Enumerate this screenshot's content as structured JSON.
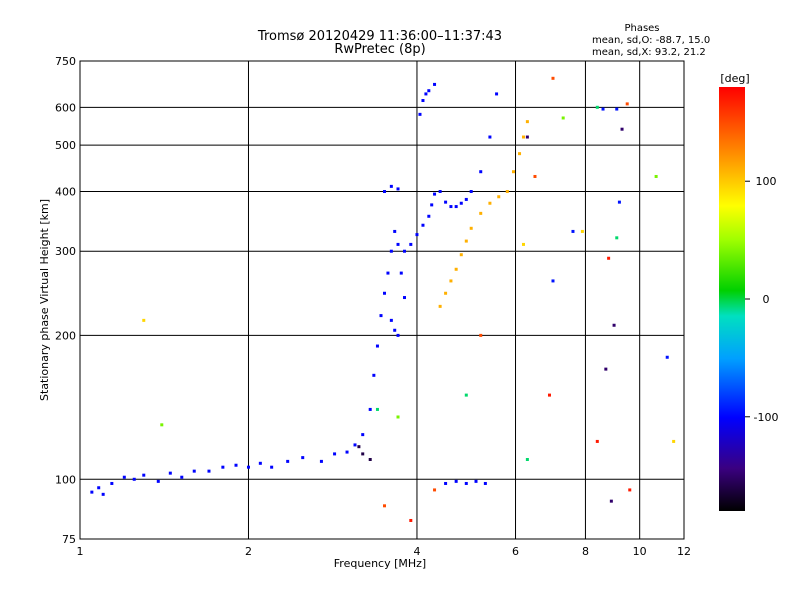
{
  "chart_data": {
    "type": "scatter",
    "title": "Tromsø 20120429 11:36:00–11:37:43",
    "subtitle": "RwPretec (8p)",
    "xlabel": "Frequency [MHz]",
    "ylabel": "Stationary phase Virtual Height [km]",
    "x_scale": "log",
    "y_scale": "log",
    "xlim": [
      1,
      12
    ],
    "ylim": [
      75,
      750
    ],
    "x_ticks": [
      1,
      2,
      4,
      6,
      8,
      10,
      12
    ],
    "y_ticks": [
      75,
      100,
      200,
      300,
      400,
      500,
      600,
      750
    ],
    "grid": true,
    "stats": {
      "header": "Phases",
      "line1": "mean, sd,O: -88.7, 15.0",
      "line2": "mean, sd,X:  93.2, 21.2"
    },
    "colorbar": {
      "label": "[deg]",
      "range": [
        -180,
        180
      ],
      "ticks": [
        100,
        0,
        -100
      ]
    },
    "series": [
      {
        "phase": -100,
        "points": [
          [
            1.05,
            94
          ],
          [
            1.08,
            96
          ],
          [
            1.1,
            93
          ],
          [
            1.14,
            98
          ],
          [
            1.2,
            101
          ],
          [
            1.25,
            100
          ],
          [
            1.3,
            102
          ],
          [
            1.38,
            99
          ],
          [
            1.45,
            103
          ],
          [
            1.52,
            101
          ],
          [
            1.6,
            104
          ],
          [
            1.7,
            104
          ],
          [
            1.8,
            106
          ],
          [
            1.9,
            107
          ],
          [
            2.0,
            106
          ],
          [
            2.1,
            108
          ],
          [
            2.2,
            106
          ],
          [
            2.35,
            109
          ],
          [
            2.5,
            111
          ],
          [
            2.7,
            109
          ],
          [
            2.85,
            113
          ],
          [
            3.0,
            114
          ],
          [
            3.1,
            118
          ],
          [
            3.2,
            124
          ],
          [
            3.3,
            140
          ],
          [
            3.35,
            165
          ],
          [
            3.4,
            190
          ],
          [
            3.45,
            220
          ],
          [
            3.5,
            245
          ],
          [
            3.55,
            270
          ],
          [
            3.6,
            300
          ],
          [
            3.65,
            330
          ],
          [
            3.7,
            310
          ],
          [
            3.75,
            270
          ],
          [
            3.8,
            240
          ],
          [
            3.6,
            215
          ],
          [
            3.65,
            205
          ],
          [
            3.7,
            200
          ],
          [
            3.5,
            400
          ],
          [
            3.6,
            410
          ],
          [
            3.7,
            405
          ],
          [
            3.8,
            300
          ],
          [
            3.9,
            310
          ],
          [
            4.0,
            325
          ],
          [
            4.1,
            340
          ],
          [
            4.2,
            355
          ],
          [
            4.25,
            375
          ],
          [
            4.3,
            395
          ],
          [
            4.4,
            400
          ],
          [
            4.5,
            380
          ],
          [
            4.6,
            372
          ],
          [
            4.7,
            372
          ],
          [
            4.8,
            378
          ],
          [
            4.9,
            385
          ],
          [
            5.0,
            400
          ],
          [
            5.2,
            440
          ],
          [
            5.4,
            520
          ],
          [
            5.55,
            640
          ],
          [
            4.05,
            580
          ],
          [
            4.1,
            620
          ],
          [
            4.15,
            640
          ],
          [
            4.2,
            650
          ],
          [
            4.3,
            670
          ],
          [
            4.5,
            98
          ],
          [
            4.7,
            99
          ],
          [
            4.9,
            98
          ],
          [
            5.1,
            99
          ],
          [
            5.3,
            98
          ]
        ]
      },
      {
        "phase": 110,
        "points": [
          [
            4.4,
            230
          ],
          [
            4.5,
            245
          ],
          [
            4.6,
            260
          ],
          [
            4.7,
            275
          ],
          [
            4.8,
            295
          ],
          [
            4.9,
            315
          ],
          [
            5.0,
            335
          ],
          [
            5.2,
            360
          ],
          [
            5.4,
            378
          ],
          [
            5.6,
            390
          ],
          [
            5.8,
            400
          ],
          [
            5.95,
            440
          ],
          [
            6.1,
            480
          ],
          [
            6.2,
            520
          ],
          [
            6.3,
            560
          ]
        ]
      },
      {
        "phase": -160,
        "points": [
          [
            3.2,
            113
          ],
          [
            3.3,
            110
          ],
          [
            3.15,
            117
          ]
        ]
      },
      {
        "phase": 150,
        "points": [
          [
            7.0,
            690
          ],
          [
            9.5,
            610
          ],
          [
            6.5,
            430
          ],
          [
            5.2,
            200
          ],
          [
            4.3,
            95
          ],
          [
            3.5,
            88
          ]
        ]
      },
      {
        "phase": 40,
        "points": [
          [
            7.3,
            570
          ],
          [
            10.7,
            430
          ],
          [
            3.7,
            135
          ],
          [
            1.4,
            130
          ]
        ]
      },
      {
        "phase": -5,
        "points": [
          [
            6.3,
            110
          ],
          [
            8.4,
            600
          ],
          [
            9.1,
            320
          ],
          [
            3.4,
            140
          ],
          [
            4.9,
            150
          ]
        ]
      },
      {
        "phase": 95,
        "points": [
          [
            1.3,
            215
          ],
          [
            6.2,
            310
          ],
          [
            7.9,
            330
          ],
          [
            11.5,
            120
          ]
        ]
      },
      {
        "phase": 170,
        "points": [
          [
            6.9,
            150
          ],
          [
            8.8,
            290
          ],
          [
            9.6,
            95
          ],
          [
            8.4,
            120
          ],
          [
            3.9,
            82
          ]
        ]
      },
      {
        "phase": -95,
        "points": [
          [
            8.6,
            595
          ],
          [
            9.1,
            595
          ],
          [
            9.2,
            380
          ],
          [
            7.0,
            260
          ],
          [
            11.2,
            180
          ],
          [
            7.6,
            330
          ]
        ]
      },
      {
        "phase": -150,
        "points": [
          [
            8.9,
            90
          ],
          [
            9.0,
            210
          ],
          [
            6.3,
            520
          ],
          [
            9.3,
            540
          ],
          [
            8.7,
            170
          ]
        ]
      }
    ]
  }
}
